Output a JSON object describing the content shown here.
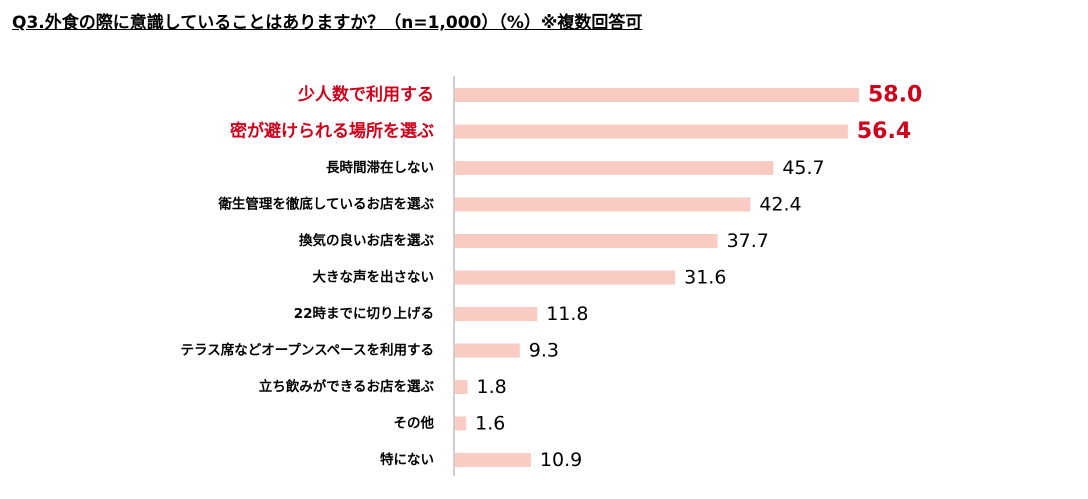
{
  "title": "Q3.外食の際に意識していることはありますか？（n=1,000）（%）※複数回答可",
  "chart_data": {
    "type": "bar",
    "orientation": "horizontal",
    "categories": [
      "少人数で利用する",
      "密が避けられる場所を選ぶ",
      "長時間滞在しない",
      "衛生管理を徹底しているお店を選ぶ",
      "換気の良いお店を選ぶ",
      "大きな声を出さない",
      "22時までに切り上げる",
      "テラス席などオープンスペースを利用する",
      "立ち飲みができるお店を選ぶ",
      "その他",
      "特にない"
    ],
    "values": [
      58.0,
      56.4,
      45.7,
      42.4,
      37.7,
      31.6,
      11.8,
      9.3,
      1.8,
      1.6,
      10.9
    ],
    "value_labels": [
      "58.0",
      "56.4",
      "45.7",
      "42.4",
      "37.7",
      "31.6",
      "11.8",
      "9.3",
      "1.8",
      "1.6",
      "10.9"
    ],
    "highlighted": [
      true,
      true,
      false,
      false,
      false,
      false,
      false,
      false,
      false,
      false,
      false
    ],
    "bar_color": "#f9cbc3",
    "highlight_color": "#d0021b",
    "text_color": "#000000",
    "axis_color": "#bfbfbf",
    "xlim": [
      0,
      65
    ]
  }
}
